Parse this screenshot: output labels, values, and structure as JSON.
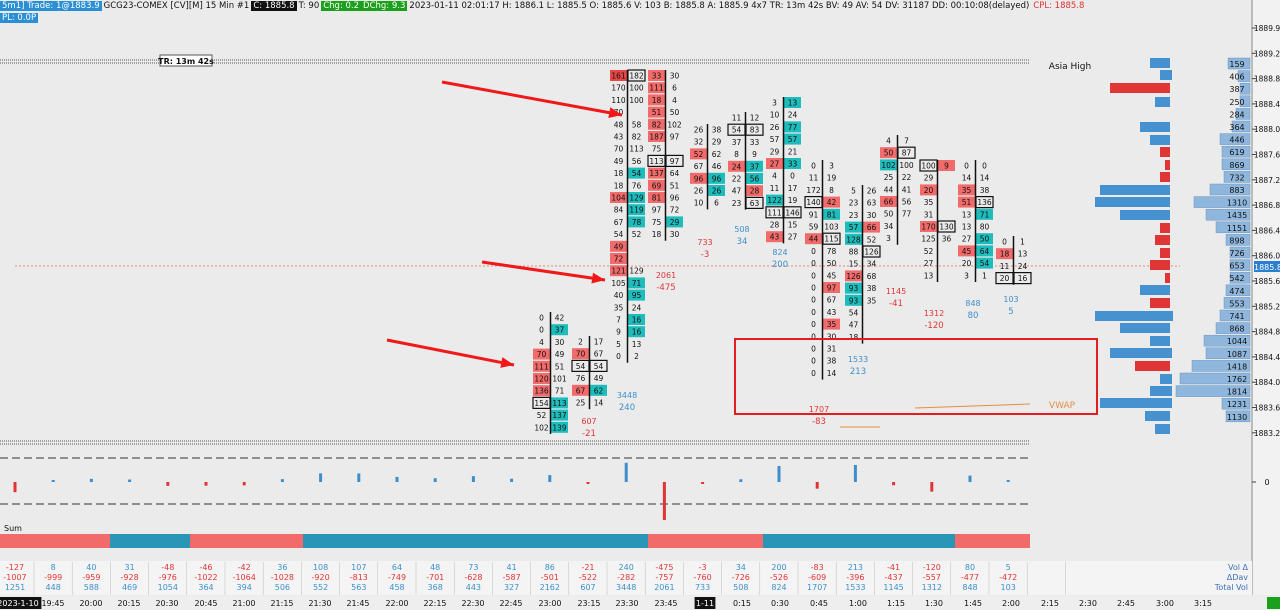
{
  "header": {
    "items": [
      {
        "text": "5m1]  Trade: 1@1883.9",
        "bg": "#2b8fd6",
        "fg": "#ffffff"
      },
      {
        "text": "GCG23-COMEX [CV][M]  15 Min  #1",
        "bg": "",
        "fg": "#111111"
      },
      {
        "text": "C: 1885.8",
        "bg": "#111111",
        "fg": "#ffffff"
      },
      {
        "text": "T: 90",
        "bg": "",
        "fg": "#111111"
      },
      {
        "text": "Chg: 0.2",
        "bg": "#1aa01a",
        "fg": "#ffffff"
      },
      {
        "text": "DChg: 9.3",
        "bg": "#1aa01a",
        "fg": "#ffffff"
      },
      {
        "text": "2023-01-11 02:01:17 H: 1886.1 L: 1885.5 O: 1885.6 V: 103 B: 1885.8 A: 1885.9 4x7 TR: 13m 42s BV: 49 AV: 54 DV: 31187 DD: 00:10:08(delayed)",
        "bg": "",
        "fg": "#111111"
      },
      {
        "text": "CPL: 1885.8",
        "bg": "",
        "fg": "#e03030"
      }
    ],
    "line2": {
      "text": "PL: 0.0P",
      "bg": "#2b8fd6",
      "fg": "#ffffff"
    }
  },
  "labels": {
    "tr_label": "TR: 13m 42s",
    "asia_high": "Asia High",
    "vwap": "VWAP",
    "sum_label": "Sum",
    "current_price": "1885.8",
    "delta_zero": "0"
  },
  "colors": {
    "bid": "#f26b6b",
    "ask": "#1fbcbc",
    "blue": "#3d8fcc",
    "red": "#e03535",
    "sell_strong": "#e84545",
    "buy_strong": "#1aa6b0"
  },
  "price_axis": {
    "ticks": [
      "1889.9",
      "1889.2",
      "1888.8",
      "1888.4",
      "1888.0",
      "1887.6",
      "1887.2",
      "1886.8",
      "1886.4",
      "1886.0",
      "1885.6",
      "1885.2",
      "1884.8",
      "1884.4",
      "1884.0",
      "1883.6",
      "1883.2"
    ]
  },
  "volume_profile": {
    "labels": [
      "159",
      "406",
      "387",
      "250",
      "284",
      "364",
      "446",
      "619",
      "869",
      "732",
      "883",
      "1310",
      "1435",
      "1151",
      "898",
      "726",
      "653",
      "542",
      "474",
      "553",
      "741",
      "868",
      "1044",
      "1087",
      "1418",
      "1762",
      "1814",
      "1231",
      "1130"
    ]
  },
  "x_axis": {
    "labels": [
      "2023-1-10",
      "19:45",
      "20:00",
      "20:15",
      "20:30",
      "20:45",
      "21:00",
      "21:15",
      "21:30",
      "21:45",
      "22:00",
      "22:15",
      "22:30",
      "22:45",
      "23:00",
      "23:15",
      "23:30",
      "23:45",
      "1-11",
      "0:15",
      "0:30",
      "0:45",
      "1:00",
      "1:15",
      "1:30",
      "1:45",
      "2:00",
      "2:15",
      "2:30",
      "2:45",
      "3:00",
      "3:15"
    ]
  },
  "stats_table": {
    "row_labels": [
      "Vol Δ",
      "ΔDav",
      "Total Vol"
    ],
    "vol_delta": [
      "-127",
      "8",
      "40",
      "31",
      "-48",
      "-46",
      "-42",
      "36",
      "108",
      "107",
      "64",
      "48",
      "73",
      "41",
      "86",
      "-21",
      "240",
      "-475",
      "-3",
      "34",
      "200",
      "-83",
      "213",
      "-41",
      "-120",
      "80",
      "5"
    ],
    "delta_dav": [
      "-1007",
      "-999",
      "-959",
      "-928",
      "-976",
      "-1022",
      "-1064",
      "-1028",
      "-920",
      "-813",
      "-749",
      "-701",
      "-628",
      "-587",
      "-501",
      "-522",
      "-282",
      "-757",
      "-760",
      "-726",
      "-526",
      "-609",
      "-396",
      "-437",
      "-557",
      "-477",
      "-472"
    ],
    "total_vol": [
      "1251",
      "448",
      "588",
      "469",
      "1054",
      "364",
      "394",
      "506",
      "552",
      "563",
      "458",
      "368",
      "443",
      "327",
      "2162",
      "607",
      "3448",
      "2061",
      "733",
      "508",
      "824",
      "1707",
      "1533",
      "1145",
      "1312",
      "848",
      "103"
    ]
  },
  "footprint": {
    "bar_summaries": [
      {
        "delta": "-21",
        "vol": "607"
      },
      {
        "delta": "240",
        "vol": "3448"
      },
      {
        "delta": "-475",
        "vol": "2061"
      },
      {
        "delta": "-3",
        "vol": "733"
      },
      {
        "delta": "34",
        "vol": "508"
      },
      {
        "delta": "200",
        "vol": "824"
      },
      {
        "delta": "-83",
        "vol": "1707"
      },
      {
        "delta": "213",
        "vol": "1533"
      },
      {
        "delta": "-41",
        "vol": "1145"
      },
      {
        "delta": "-120",
        "vol": "1312"
      },
      {
        "delta": "80",
        "vol": "848"
      },
      {
        "delta": "5",
        "vol": "103"
      }
    ]
  }
}
